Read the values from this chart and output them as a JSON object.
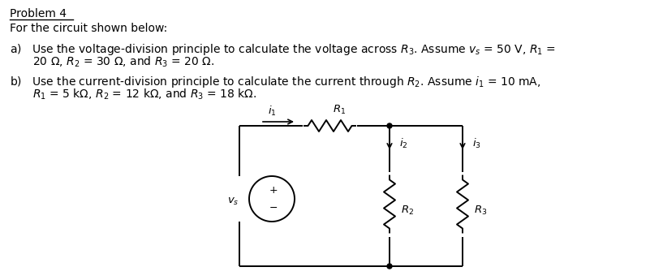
{
  "bg_color": "#ffffff",
  "text_color": "#000000",
  "font_size": 10.0,
  "title": "Problem 4",
  "line1": "For the circuit shown below:",
  "part_a": "a)   Use the voltage-division principle to calculate the voltage across $R_3$. Assume $v_s$ = 50 V, $R_1$ =",
  "part_a2": "     20 Ω, $R_2$ = 30 Ω, and $R_3$ = 20 Ω.",
  "part_b": "b)   Use the current-division principle to calculate the current through $R_2$. Assume $i_1$ = 10 mA,",
  "part_b2": "     $R_1$ = 5 kΩ, $R_2$ = 12 kΩ, and $R_3$ = 18 kΩ.",
  "lw": 1.4,
  "circ_lw": 1.4
}
